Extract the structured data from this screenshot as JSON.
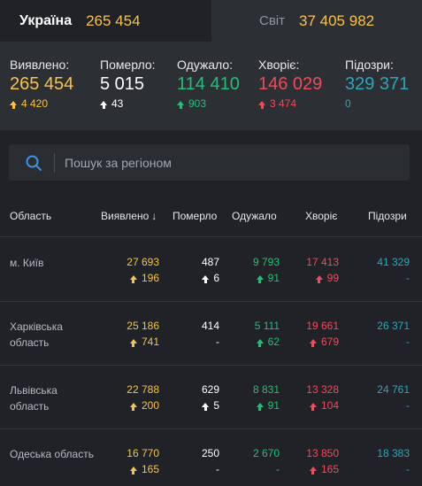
{
  "tabs": {
    "ukraine": {
      "label": "Україна",
      "count": "265 454"
    },
    "world": {
      "label": "Світ",
      "count": "37 405 982"
    }
  },
  "summary": {
    "detected": {
      "label": "Виявлено:",
      "value": "265 454",
      "delta": "4 420"
    },
    "died": {
      "label": "Померло:",
      "value": "5 015",
      "delta": "43"
    },
    "recovered": {
      "label": "Одужало:",
      "value": "114 410",
      "delta": "903"
    },
    "sick": {
      "label": "Хворіє:",
      "value": "146 029",
      "delta": "3 474"
    },
    "suspected": {
      "label": "Підозри:",
      "value": "329 371",
      "delta": "0"
    }
  },
  "search": {
    "placeholder": "Пошук за регіоном"
  },
  "table": {
    "headers": {
      "region": "Область",
      "detected": "Виявлено",
      "died": "Померло",
      "recovered": "Одужало",
      "sick": "Хворіє",
      "suspected": "Підозри"
    },
    "rows": [
      {
        "name": "м. Київ",
        "detected": "27 693",
        "detected_delta": "196",
        "died": "487",
        "died_delta": "6",
        "recovered": "9 793",
        "recovered_delta": "91",
        "sick": "17 413",
        "sick_delta": "99",
        "suspected": "41 329",
        "suspected_delta": "-"
      },
      {
        "name": "Харківська область",
        "detected": "25 186",
        "detected_delta": "741",
        "died": "414",
        "died_delta": "-",
        "recovered": "5 111",
        "recovered_delta": "62",
        "sick": "19 661",
        "sick_delta": "679",
        "suspected": "26 371",
        "suspected_delta": "-"
      },
      {
        "name": "Львівська область",
        "detected": "22 788",
        "detected_delta": "200",
        "died": "629",
        "died_delta": "5",
        "recovered": "8 831",
        "recovered_delta": "91",
        "sick": "13 328",
        "sick_delta": "104",
        "suspected": "24 761",
        "suspected_delta": "-"
      },
      {
        "name": "Одеська область",
        "detected": "16 770",
        "detected_delta": "165",
        "died": "250",
        "died_delta": "-",
        "recovered": "2 670",
        "recovered_delta": "-",
        "sick": "13 850",
        "sick_delta": "165",
        "suspected": "18 383",
        "suspected_delta": "-"
      }
    ]
  },
  "colors": {
    "detected": "#f7c34a",
    "died": "#ffffff",
    "recovered": "#20c07a",
    "sick": "#f04b5a",
    "suspected": "#2aa7b8"
  }
}
